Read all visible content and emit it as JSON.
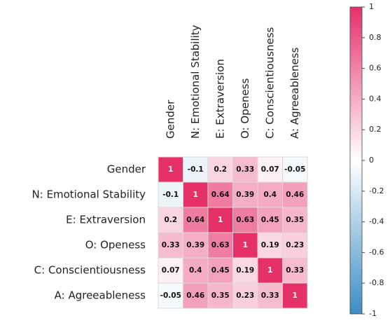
{
  "chart_data": {
    "type": "heatmap",
    "categories": [
      "Gender",
      "N: Emotional Stability",
      "E: Extraversion",
      "O: Openess",
      "C: Conscientiousness",
      "A: Agreeableness"
    ],
    "matrix": [
      [
        1,
        -0.1,
        0.2,
        0.33,
        0.07,
        -0.05
      ],
      [
        -0.1,
        1,
        0.64,
        0.39,
        0.4,
        0.46
      ],
      [
        0.2,
        0.64,
        1,
        0.63,
        0.45,
        0.35
      ],
      [
        0.33,
        0.39,
        0.63,
        1,
        0.19,
        0.23
      ],
      [
        0.07,
        0.4,
        0.45,
        0.19,
        1,
        0.33
      ],
      [
        -0.05,
        0.46,
        0.35,
        0.23,
        0.33,
        1
      ]
    ],
    "colormap": [
      "#3b8dc4",
      "#ffffff",
      "#e6306a"
    ],
    "clim": [
      -1,
      1
    ],
    "cticks": [
      1,
      0.8,
      0.6,
      0.4,
      0.2,
      0,
      -0.2,
      -0.4,
      -0.6,
      -0.8,
      -1
    ]
  }
}
